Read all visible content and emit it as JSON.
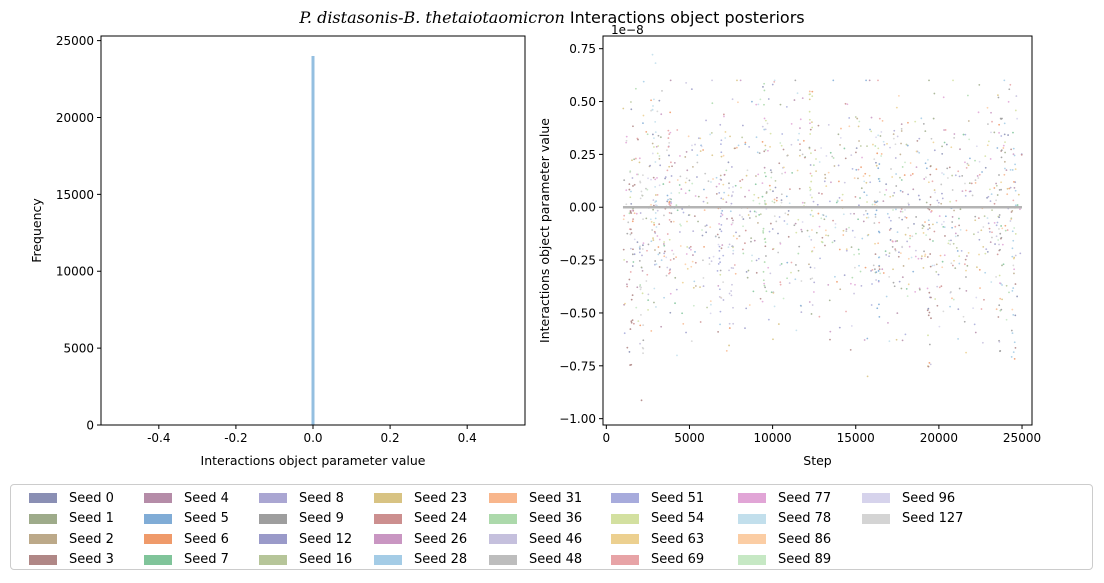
{
  "figure": {
    "title_species_a": "P. distasonis",
    "title_species_b": "B. thetaiotaomicron",
    "title_suffix": " Interactions object posteriors"
  },
  "chart_data": [
    {
      "type": "bar",
      "subtype": "histogram",
      "xlabel": "Interactions object parameter value",
      "ylabel": "Frequency",
      "xlim": [
        -0.55,
        0.55
      ],
      "ylim": [
        0,
        25300
      ],
      "xticks": [
        "-0.4",
        "-0.2",
        "0.0",
        "0.2",
        "0.4"
      ],
      "xtick_values": [
        -0.4,
        -0.2,
        0.0,
        0.2,
        0.4
      ],
      "yticks": [
        "0",
        "5000",
        "10000",
        "15000",
        "20000",
        "25000"
      ],
      "ytick_values": [
        0,
        5000,
        10000,
        15000,
        20000,
        25000
      ],
      "bins": [
        {
          "x": 0.0,
          "count": 24000
        }
      ],
      "bar_color": "#94bfe0",
      "grid": false
    },
    {
      "type": "scatter",
      "xlabel": "Step",
      "ylabel": "Interactions object parameter value",
      "scale_label": "1e−8",
      "xlim": [
        -200,
        25600
      ],
      "ylim": [
        -1.03,
        0.81
      ],
      "xticks": [
        "0",
        "5000",
        "10000",
        "15000",
        "20000",
        "25000"
      ],
      "xtick_values": [
        0,
        5000,
        10000,
        15000,
        20000,
        25000
      ],
      "yticks": [
        "−1.00",
        "−0.75",
        "−0.50",
        "−0.25",
        "0.00",
        "0.25",
        "0.50",
        "0.75"
      ],
      "ytick_values": [
        -1.0,
        -0.75,
        -0.5,
        -0.25,
        0.0,
        0.25,
        0.5,
        0.75
      ],
      "x_range": [
        1000,
        25000
      ],
      "spread": 0.28,
      "mean_line": {
        "value": 0.0,
        "color": "#b4b4b4"
      },
      "clusters": [
        {
          "x": 1500,
          "lo": -0.75,
          "hi": 0.3
        },
        {
          "x": 2100,
          "lo": -0.93,
          "hi": 0.35
        },
        {
          "x": 2900,
          "lo": -0.55,
          "hi": 0.78
        },
        {
          "x": 3800,
          "lo": -0.45,
          "hi": 0.55
        },
        {
          "x": 6800,
          "lo": -0.6,
          "hi": 0.3
        },
        {
          "x": 7500,
          "lo": -0.68,
          "hi": 0.2
        },
        {
          "x": 9500,
          "lo": -0.4,
          "hi": 0.64
        },
        {
          "x": 12300,
          "lo": -0.3,
          "hi": 0.56
        },
        {
          "x": 16300,
          "lo": -0.52,
          "hi": 0.3
        },
        {
          "x": 19400,
          "lo": -0.8,
          "hi": 0.2
        },
        {
          "x": 23700,
          "lo": -0.75,
          "hi": 0.52
        },
        {
          "x": 24500,
          "lo": -0.72,
          "hi": 0.3
        }
      ],
      "grid": false
    }
  ],
  "legend": {
    "placement": "below",
    "items": [
      {
        "label": "Seed 0",
        "color": "#8a8fb4"
      },
      {
        "label": "Seed 1",
        "color": "#9eab8a"
      },
      {
        "label": "Seed 2",
        "color": "#bca989"
      },
      {
        "label": "Seed 3",
        "color": "#b08786"
      },
      {
        "label": "Seed 4",
        "color": "#b58ca8"
      },
      {
        "label": "Seed 5",
        "color": "#80acd6"
      },
      {
        "label": "Seed 6",
        "color": "#ef9a6a"
      },
      {
        "label": "Seed 7",
        "color": "#80c49a"
      },
      {
        "label": "Seed 8",
        "color": "#aaa6d2"
      },
      {
        "label": "Seed 9",
        "color": "#9e9e9e"
      },
      {
        "label": "Seed 12",
        "color": "#9a9ac9"
      },
      {
        "label": "Seed 16",
        "color": "#b6c599"
      },
      {
        "label": "Seed 23",
        "color": "#d8c383"
      },
      {
        "label": "Seed 24",
        "color": "#cc8f8f"
      },
      {
        "label": "Seed 26",
        "color": "#c996c2"
      },
      {
        "label": "Seed 28",
        "color": "#a4cce6"
      },
      {
        "label": "Seed 31",
        "color": "#f8b68c"
      },
      {
        "label": "Seed 36",
        "color": "#acd9ab"
      },
      {
        "label": "Seed 46",
        "color": "#c5c0dd"
      },
      {
        "label": "Seed 48",
        "color": "#bdbdbd"
      },
      {
        "label": "Seed 51",
        "color": "#a7abdc"
      },
      {
        "label": "Seed 54",
        "color": "#d3e0a0"
      },
      {
        "label": "Seed 63",
        "color": "#ecd090"
      },
      {
        "label": "Seed 69",
        "color": "#e7a3a6"
      },
      {
        "label": "Seed 77",
        "color": "#e1a5d6"
      },
      {
        "label": "Seed 78",
        "color": "#c2dfec"
      },
      {
        "label": "Seed 86",
        "color": "#fbcda4"
      },
      {
        "label": "Seed 89",
        "color": "#c6e8c4"
      },
      {
        "label": "Seed 96",
        "color": "#d6d3ec"
      },
      {
        "label": "Seed 127",
        "color": "#d4d4d4"
      }
    ]
  }
}
